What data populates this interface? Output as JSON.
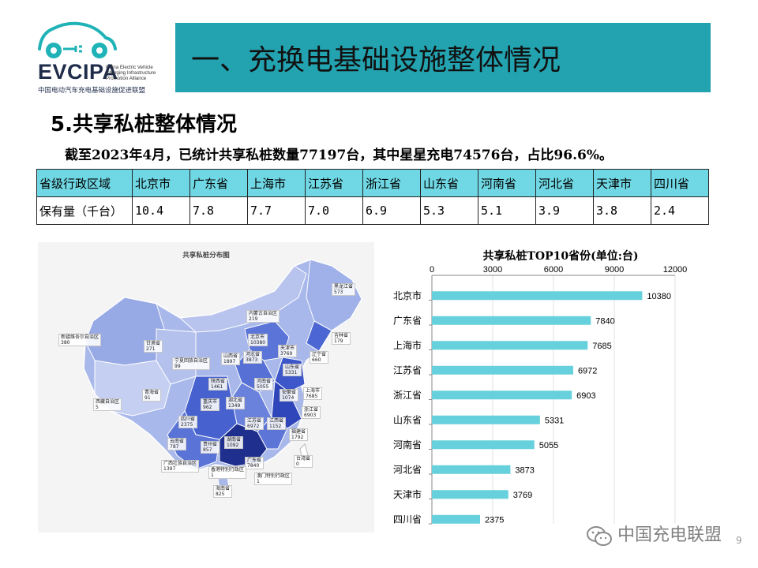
{
  "logo": {
    "name": "EVCIPA",
    "side_text": [
      "China Electric Vehicle",
      "Charging Infrastructure",
      "Promotion Alliance"
    ],
    "cn_name": "中国电动汽车充电基础设施促进联盟"
  },
  "banner": {
    "title": "一、充换电基础设施整体情况"
  },
  "section": {
    "title": "5.共享私桩整体情况"
  },
  "summary": {
    "text": "截至2023年4月，已统计共享私桩数量77197台，其中星星充电74576台，占比96.6%。"
  },
  "table": {
    "header": [
      "省级行政区域",
      "北京市",
      "广东省",
      "上海市",
      "江苏省",
      "浙江省",
      "山东省",
      "河南省",
      "河北省",
      "天津市",
      "四川省"
    ],
    "row": [
      "保有量（千台）",
      "10.4",
      "7.8",
      "7.7",
      "7.0",
      "6.9",
      "5.3",
      "5.1",
      "3.9",
      "3.8",
      "2.4"
    ]
  },
  "map": {
    "title": "共享私桩分布图",
    "labels": [
      {
        "name": "黑龙江省",
        "value": "573"
      },
      {
        "name": "吉林省",
        "value": "179"
      },
      {
        "name": "辽宁省",
        "value": "660"
      },
      {
        "name": "内蒙古自治区",
        "value": "219"
      },
      {
        "name": "新疆维吾尔自治区",
        "value": "380"
      },
      {
        "name": "甘肃省",
        "value": "271"
      },
      {
        "name": "北京市",
        "value": "10380"
      },
      {
        "name": "天津市",
        "value": "3769"
      },
      {
        "name": "河北省",
        "value": "3873"
      },
      {
        "name": "山西省",
        "value": "1897"
      },
      {
        "name": "宁夏回族自治区",
        "value": "99"
      },
      {
        "name": "山东省",
        "value": "5331"
      },
      {
        "name": "陕西省",
        "value": "1461"
      },
      {
        "name": "河南省",
        "value": "5055"
      },
      {
        "name": "青海省",
        "value": "91"
      },
      {
        "name": "西藏自治区",
        "value": "5"
      },
      {
        "name": "安徽省",
        "value": "1074"
      },
      {
        "name": "上海市",
        "value": "7685"
      },
      {
        "name": "重庆市",
        "value": "962"
      },
      {
        "name": "湖北省",
        "value": "1349"
      },
      {
        "name": "浙江省",
        "value": "6903"
      },
      {
        "name": "四川省",
        "value": "2375"
      },
      {
        "name": "江苏省",
        "value": "6972"
      },
      {
        "name": "江西省",
        "value": "1152"
      },
      {
        "name": "湖南省",
        "value": "1092"
      },
      {
        "name": "福建省",
        "value": "1792"
      },
      {
        "name": "云南省",
        "value": "787"
      },
      {
        "name": "贵州省",
        "value": "857"
      },
      {
        "name": "广东省",
        "value": "7840"
      },
      {
        "name": "台湾省",
        "value": "0"
      },
      {
        "name": "广西壮族自治区",
        "value": "1397"
      },
      {
        "name": "香港特别行政区",
        "value": "1"
      },
      {
        "name": "澳门特别行政区",
        "value": "1"
      },
      {
        "name": "海南省",
        "value": "825"
      }
    ]
  },
  "chart_data": {
    "type": "bar",
    "orientation": "horizontal",
    "title": "共享私桩TOP10省份(单位:台)",
    "categories": [
      "北京市",
      "广东省",
      "上海市",
      "江苏省",
      "浙江省",
      "山东省",
      "河南省",
      "河北省",
      "天津市",
      "四川省"
    ],
    "values": [
      10380,
      7840,
      7685,
      6972,
      6903,
      5331,
      5055,
      3873,
      3769,
      2375
    ],
    "xticks": [
      "0",
      "3000",
      "6000",
      "9000",
      "12000"
    ],
    "xlim": [
      0,
      12000
    ],
    "axis_position": "top",
    "grid": true,
    "bar_color": "#66d0dc"
  },
  "footer": {
    "watermark": "中国充电联盟",
    "page": "9"
  }
}
